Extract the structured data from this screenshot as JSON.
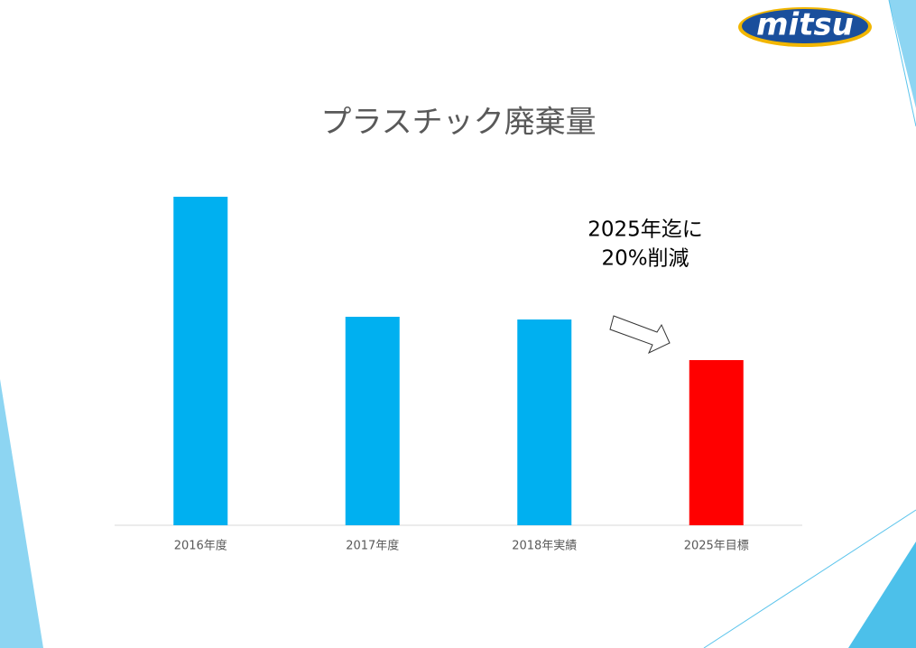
{
  "logo": "mitsu",
  "chart_data": {
    "type": "bar",
    "title": "プラスチック廃棄量",
    "categories": [
      "2016年度",
      "2017年度",
      "2018年実績",
      "2025年目標"
    ],
    "values": [
      364,
      231,
      228,
      183
    ],
    "colors": [
      "#00b0f0",
      "#00b0f0",
      "#00b0f0",
      "#ff0000"
    ],
    "ylim": [
      0,
      400
    ],
    "annotation": [
      "2025年迄に",
      "20%削減"
    ]
  }
}
